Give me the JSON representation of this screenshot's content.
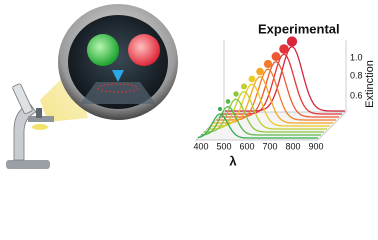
{
  "title": "Experimental",
  "y_axis": {
    "label": "Extinction",
    "ticks": [
      "1.0",
      "0.8",
      "0.6"
    ]
  },
  "x_axis": {
    "label": "λ",
    "ticks": [
      "400",
      "500",
      "600",
      "700",
      "800",
      "900"
    ]
  }
}
